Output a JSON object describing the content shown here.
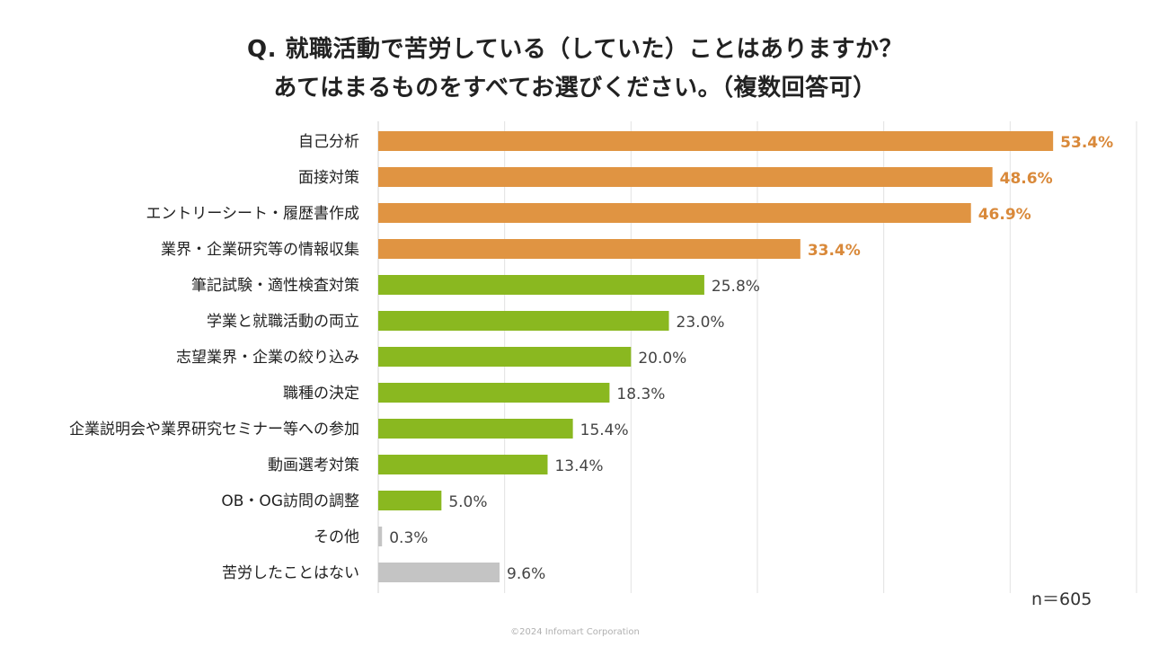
{
  "chart_data": {
    "type": "bar",
    "orientation": "horizontal",
    "title_lines": [
      "Q. 就職活動で苦労している（していた）ことはありますか？",
      "あてはまるものをすべてお選びください。（複数回答可）"
    ],
    "categories": [
      "自己分析",
      "面接対策",
      "エントリーシート・履歴書作成",
      "業界・企業研究等の情報収集",
      "筆記試験・適性検査対策",
      "学業と就職活動の両立",
      "志望業界・企業の絞り込み",
      "職種の決定",
      "企業説明会や業界研究セミナー等への参加",
      "動画選考対策",
      "OB・OG訪問の調整",
      "その他",
      "苦労したことはない"
    ],
    "values": [
      53.4,
      48.6,
      46.9,
      33.4,
      25.8,
      23.0,
      20.0,
      18.3,
      15.4,
      13.4,
      5.0,
      0.3,
      9.6
    ],
    "value_labels": [
      "53.4%",
      "48.6%",
      "46.9%",
      "33.4%",
      "25.8%",
      "23.0%",
      "20.0%",
      "18.3%",
      "15.4%",
      "13.4%",
      "5.0%",
      "0.3%",
      "9.6%"
    ],
    "bar_groups": [
      "top",
      "top",
      "top",
      "top",
      "main",
      "main",
      "main",
      "main",
      "main",
      "main",
      "main",
      "other",
      "other"
    ],
    "colors": {
      "top": "#E09442",
      "main": "#8AB820",
      "other": "#C4C4C4",
      "top_label": "#D9893A",
      "main_label": "#444444",
      "other_label": "#444444",
      "grid": "#E2E2E2"
    },
    "xlim": [
      0,
      60
    ],
    "grid_x": [
      0,
      10,
      20,
      30,
      40,
      50,
      60
    ],
    "legend": "none",
    "xlabel": "",
    "ylabel": ""
  },
  "sample_size": "n＝605",
  "footer": {
    "copyright": "©2024 Infomart Corporation"
  }
}
